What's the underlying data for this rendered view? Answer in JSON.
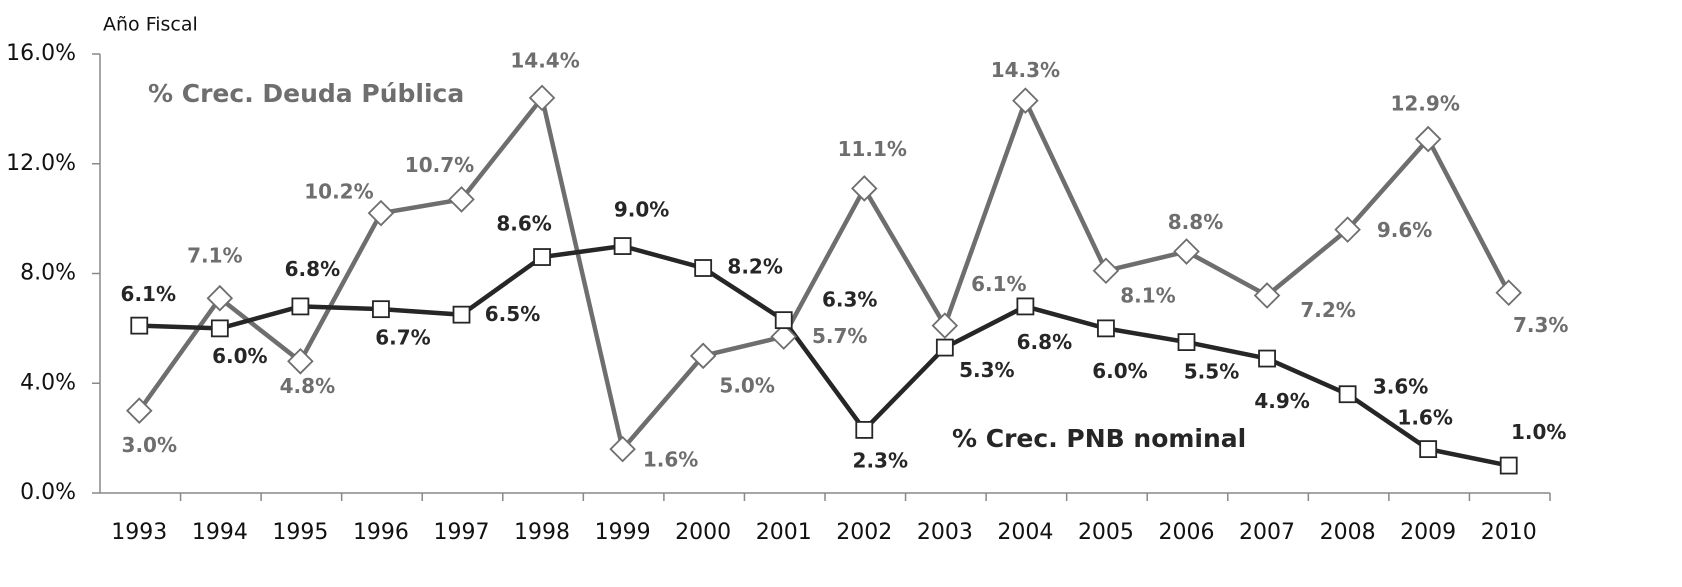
{
  "chart_data": {
    "type": "line",
    "annotations": [
      "Año Fiscal",
      "% Crec. Deuda Pública",
      "% Crec. PNB nominal"
    ],
    "categories": [
      "1993",
      "1994",
      "1995",
      "1996",
      "1997",
      "1998",
      "1999",
      "2000",
      "2001",
      "2002",
      "2003",
      "2004",
      "2005",
      "2006",
      "2007",
      "2008",
      "2009",
      "2010"
    ],
    "series": [
      {
        "name": "% Crec. Deuda Pública",
        "color": "#6e6e6e",
        "marker": "diamond",
        "values": [
          3.0,
          7.1,
          4.8,
          10.2,
          10.7,
          14.4,
          1.6,
          5.0,
          5.7,
          11.1,
          6.1,
          14.3,
          8.1,
          8.8,
          7.2,
          9.6,
          12.9,
          7.3
        ],
        "value_labels": [
          "3.0%",
          "7.1%",
          "4.8%",
          "10.2%",
          "10.7%",
          "14.4%",
          "1.6%",
          "5.0%",
          "5.7%",
          "11.1%",
          "6.1%",
          "14.3%",
          "8.1%",
          "8.8%",
          "7.2%",
          "9.6%",
          "12.9%",
          "7.3%"
        ]
      },
      {
        "name": "% Crec. PNB nominal",
        "color": "#262626",
        "marker": "square",
        "values": [
          6.1,
          6.0,
          6.8,
          6.7,
          6.5,
          8.6,
          9.0,
          8.2,
          6.3,
          2.3,
          5.3,
          6.8,
          6.0,
          5.5,
          4.9,
          3.6,
          1.6,
          1.0
        ],
        "value_labels": [
          "6.1%",
          "6.0%",
          "6.8%",
          "6.7%",
          "6.5%",
          "8.6%",
          "9.0%",
          "8.2%",
          "6.3%",
          "2.3%",
          "5.3%",
          "6.8%",
          "6.0%",
          "5.5%",
          "4.9%",
          "3.6%",
          "1.6%",
          "1.0%"
        ]
      }
    ],
    "ylim": [
      0,
      16
    ],
    "yticks": [
      {
        "value": 0,
        "label": "0.0%"
      },
      {
        "value": 4,
        "label": "4.0%"
      },
      {
        "value": 8,
        "label": "8.0%"
      },
      {
        "value": 12,
        "label": "12.0%"
      },
      {
        "value": 16,
        "label": "16.0%"
      }
    ],
    "grid": false
  }
}
